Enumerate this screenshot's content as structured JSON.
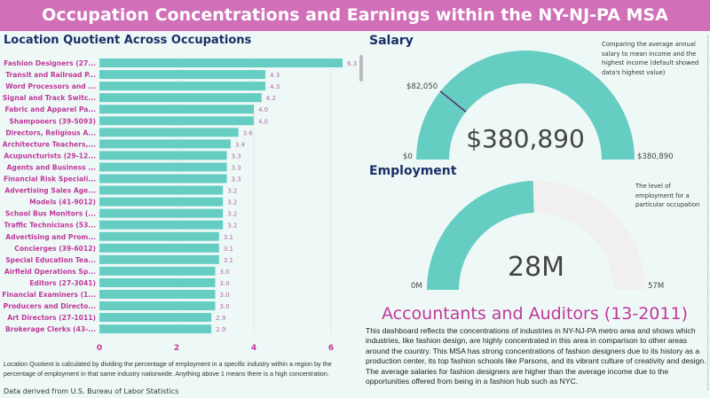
{
  "title": "Occupation Concentrations and Earnings within the NY-NJ-PA MSA",
  "lq": {
    "heading": "Location Quotient Across Occupations",
    "footnote": "Location Quotient is calculated by dividing the percentage of employment in a specific industry within a region by the percentage of employment in that same industry nationwide. Anything above 1 means there is a high concentration.",
    "source": "Data derived from U.S. Bureau of Labor Statistics"
  },
  "chart_data": {
    "type": "bar",
    "orientation": "horizontal",
    "categories": [
      "Fashion Designers (27...",
      "Transit and Railroad P...",
      "Word Processors and ...",
      "Signal and Track Switc...",
      "Fabric and Apparel Pa...",
      "Shampooers (39-5093)",
      "Directors, Religious A...",
      "Architecture Teachers,...",
      "Acupuncturists (29-12...",
      "Agents and Business ...",
      "Financial Risk Speciali...",
      "Advertising Sales Age...",
      "Models (41-9012)",
      "School Bus Monitors (...",
      "Traffic Technicians (53...",
      "Advertising and Prom...",
      "Concierges (39-6012)",
      "Special Education Tea...",
      "Airfield Operations Sp...",
      "Editors (27-3041)",
      "Financial Examiners (1...",
      "Producers and Directo...",
      "Art Directors (27-1011)",
      "Brokerage Clerks (43-..."
    ],
    "values": [
      6.3,
      4.3,
      4.3,
      4.2,
      4.0,
      4.0,
      3.6,
      3.4,
      3.3,
      3.3,
      3.3,
      3.2,
      3.2,
      3.2,
      3.2,
      3.1,
      3.1,
      3.1,
      3.0,
      3.0,
      3.0,
      3.0,
      2.9,
      2.9
    ],
    "xticks": [
      "0",
      "2",
      "4",
      "6"
    ],
    "xlim": [
      0,
      6.5
    ],
    "grid": true,
    "bar_color": "#66cdc3",
    "label_color": "#c0389a"
  },
  "salary": {
    "heading": "Salary",
    "note": "Comparing the average annual salary to mean income and the highest income (default showed data's highest value)",
    "value": "$380,890",
    "min": "$0",
    "max": "$380,890",
    "target": "$82,050",
    "value_num": 380890,
    "max_num": 380890,
    "target_num": 82050
  },
  "employment": {
    "heading": "Employment",
    "note": "The level of employment for a particular occupation",
    "value": "28M",
    "min": "0M",
    "max": "57M",
    "value_num": 28,
    "max_num": 57
  },
  "occupation": "Accountants and Auditors (13-2011)",
  "description": "This dashboard reflects the concentrations of industries in NY-NJ-PA metro area and shows which industries, like fashion design, are highly concentrated in this area in comparison to other areas around the country. This MSA has strong concentrations of fashion designers due to its history as a production center, its top fashion schools like Parsons, and its vibrant culture of creativity and design. The average salaries for fashion designers are higher than the average income due to the opportunities offered from being in a fashion hub such as NYC.",
  "colors": {
    "accent": "#d16fb8",
    "teal": "#66cdc3",
    "navy": "#1b2f66",
    "gauge_empty": "#f1f0ef"
  }
}
